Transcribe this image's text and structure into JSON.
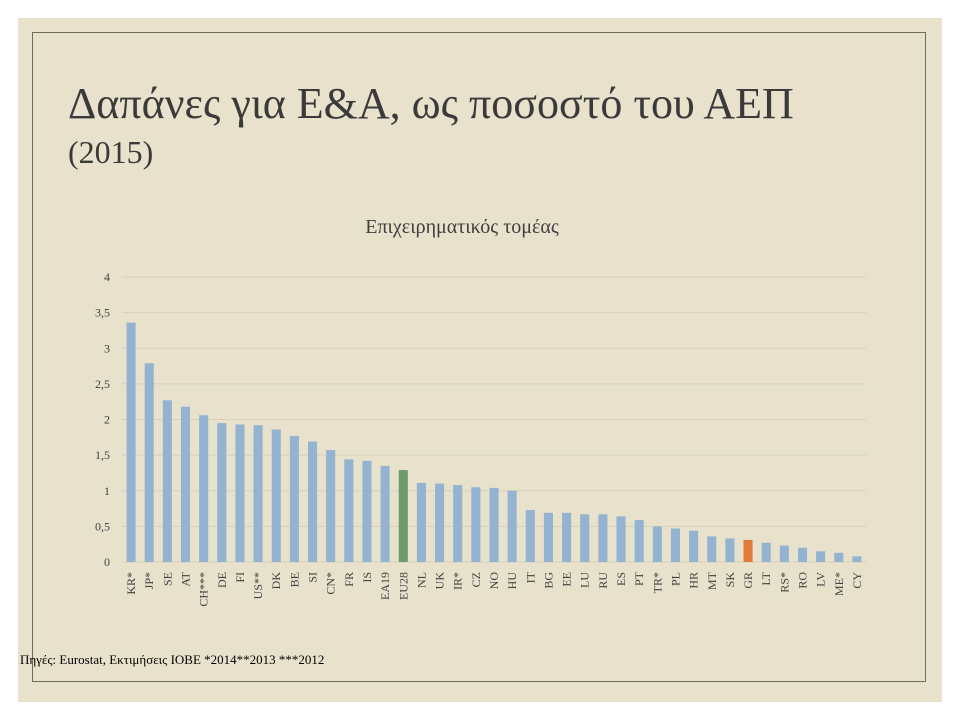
{
  "slide": {
    "title": "Δαπάνες για Ε&Α, ως ποσοστό του ΑΕΠ",
    "subtitle": "(2015)",
    "source": "Πηγές: Eurostat, Εκτιμήσεις ΙΟΒΕ  *2014**2013 ***2012"
  },
  "colors": {
    "bar_default": "#93b3d0",
    "bar_eu28": "#6f9a6b",
    "bar_gr": "#e07b39",
    "grid": "#d6d0bb",
    "background": "#e8e2cc"
  },
  "chart_data": {
    "type": "bar",
    "title": "Επιχειρηματικός τομέας",
    "xlabel": "",
    "ylabel": "",
    "ylim": [
      0,
      4
    ],
    "yticks": [
      0,
      0.5,
      1,
      1.5,
      2,
      2.5,
      3,
      3.5,
      4
    ],
    "ytick_labels": [
      "0",
      "0,5",
      "1",
      "1,5",
      "2",
      "2,5",
      "3",
      "3,5",
      "4"
    ],
    "grid": true,
    "legend": "none",
    "categories": [
      "KR*",
      "JP*",
      "SE",
      "AT",
      "CH***",
      "DE",
      "FI",
      "US**",
      "DK",
      "BE",
      "SI",
      "CN*",
      "FR",
      "IS",
      "EA19",
      "EU28",
      "NL",
      "UK",
      "IR*",
      "CZ",
      "NO",
      "HU",
      "IT",
      "BG",
      "EE",
      "LU",
      "RU",
      "ES",
      "PT",
      "TR*",
      "PL",
      "HR",
      "MT",
      "SK",
      "GR",
      "LT",
      "RS*",
      "RO",
      "LV",
      "ME*",
      "CY"
    ],
    "values": [
      3.36,
      2.79,
      2.27,
      2.18,
      2.06,
      1.95,
      1.93,
      1.92,
      1.86,
      1.77,
      1.69,
      1.57,
      1.44,
      1.42,
      1.35,
      1.29,
      1.11,
      1.1,
      1.08,
      1.05,
      1.04,
      1.0,
      0.73,
      0.69,
      0.69,
      0.67,
      0.67,
      0.64,
      0.59,
      0.5,
      0.47,
      0.44,
      0.36,
      0.33,
      0.31,
      0.27,
      0.23,
      0.2,
      0.15,
      0.13,
      0.08
    ],
    "highlights": {
      "EU28": "bar_eu28",
      "GR": "bar_gr"
    }
  }
}
